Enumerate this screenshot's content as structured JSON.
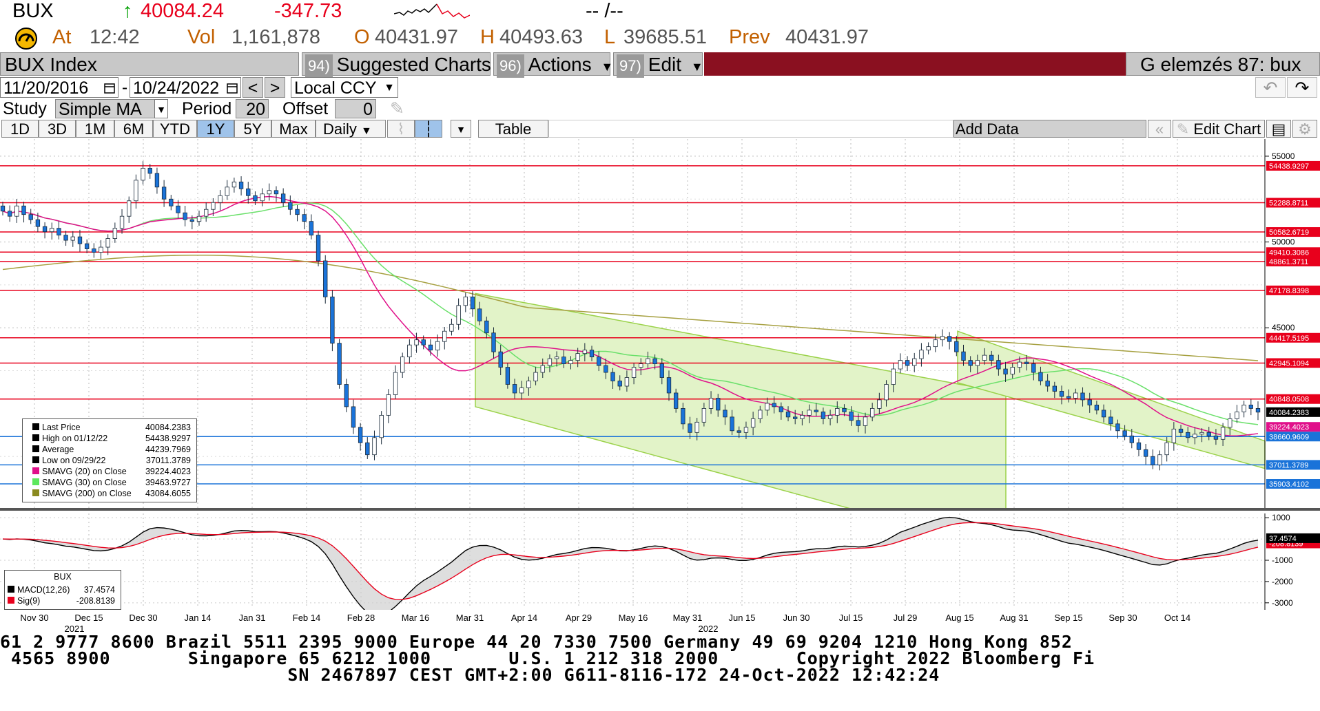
{
  "header": {
    "ticker": "BUX",
    "arrow": "↑",
    "last_price": "40084.24",
    "change": "-347.73",
    "time_placeholder": "-- /--",
    "at_label": "At",
    "at_time": "12:42",
    "vol_label": "Vol",
    "volume": "1,161,878",
    "open_label": "O",
    "open": "40431.97",
    "high_label": "H",
    "high": "40493.63",
    "low_label": "L",
    "low": "39685.51",
    "prev_label": "Prev",
    "prev": "40431.97"
  },
  "toolbar": {
    "security": "BUX Index",
    "suggested_num": "94)",
    "suggested_label": "Suggested Charts",
    "actions_num": "96)",
    "actions_label": "Actions",
    "edit_num": "97)",
    "edit_label": "Edit",
    "function_label": "G elemzés 87: bux"
  },
  "range": {
    "start_date": "11/20/2016",
    "separator": "-",
    "end_date": "10/24/2022",
    "prev_icon": "chevron-left-icon",
    "next_icon": "chevron-right-icon",
    "currency": "Local CCY",
    "undo_icon": "undo-icon",
    "redo_icon": "redo-icon"
  },
  "study": {
    "study_label": "Study",
    "study_value": "Simple MA",
    "period_label": "Period",
    "period_value": "20",
    "offset_label": "Offset",
    "offset_value": "0"
  },
  "periods": {
    "buttons": [
      "1D",
      "3D",
      "1M",
      "6M",
      "YTD",
      "1Y",
      "5Y",
      "Max"
    ],
    "selected": "1Y",
    "frequency": "Daily",
    "table_label": "Table",
    "add_data_placeholder": "Add Data",
    "edit_chart_label": "Edit Chart"
  },
  "legend": {
    "rows": [
      {
        "label": "Last Price",
        "value": "40084.2383",
        "color": "#000000"
      },
      {
        "label": "High on 01/12/22",
        "value": "54438.9297",
        "color": "#000000"
      },
      {
        "label": "Average",
        "value": "44239.7969",
        "color": "#000000"
      },
      {
        "label": "Low on 09/29/22",
        "value": "37011.3789",
        "color": "#000000"
      },
      {
        "label": "SMAVG (20)  on Close",
        "value": "39224.4023",
        "color": "#e0108a"
      },
      {
        "label": "SMAVG (30)  on Close",
        "value": "39463.9727",
        "color": "#5de85d"
      },
      {
        "label": "SMAVG (200)  on Close",
        "value": "43084.6055",
        "color": "#8a8a20"
      }
    ]
  },
  "macd_legend": {
    "title": "BUX",
    "rows": [
      {
        "label": "MACD(12,26)",
        "value": "37.4574",
        "color": "#000000"
      },
      {
        "label": "Sig(9)",
        "value": "-208.8139",
        "color": "#e8001c"
      }
    ]
  },
  "chart_data": {
    "type": "line",
    "title": "",
    "y_axis_ticks": [
      "55000",
      "50000",
      "45000"
    ],
    "ylim": [
      34500,
      56000
    ],
    "price_labels": [
      {
        "value": 54438.9297,
        "label": "54438.9297",
        "color": "#e8001c"
      },
      {
        "value": 52288.8711,
        "label": "52288.8711",
        "color": "#e8001c"
      },
      {
        "value": 50582.6719,
        "label": "50582.6719",
        "color": "#e8001c"
      },
      {
        "value": 49410.3086,
        "label": "49410.3086",
        "color": "#e8001c"
      },
      {
        "value": 48861.3711,
        "label": "48861.3711",
        "color": "#e8001c"
      },
      {
        "value": 47178.8398,
        "label": "47178.8398",
        "color": "#e8001c"
      },
      {
        "value": 44417.5195,
        "label": "44417.5195",
        "color": "#e8001c"
      },
      {
        "value": 42945.1094,
        "label": "42945.1094",
        "color": "#e8001c"
      },
      {
        "value": 40848.0508,
        "label": "40848.0508",
        "color": "#e8001c"
      },
      {
        "value": 40084.2383,
        "label": "40084.2383",
        "color": "#000000"
      },
      {
        "value": 39224.4023,
        "label": "39224.4023",
        "color": "#e0108a"
      },
      {
        "value": 38660.9609,
        "label": "38660.9609",
        "color": "#1a73d9"
      },
      {
        "value": 37011.3789,
        "label": "37011.3789",
        "color": "#1a73d9"
      },
      {
        "value": 35903.4102,
        "label": "35903.4102",
        "color": "#1a73d9"
      }
    ],
    "x_tick_labels": [
      "Nov 30",
      "Dec 15",
      "Dec 30",
      "Jan 14",
      "Jan 31",
      "Feb 14",
      "Feb 28",
      "Mar 16",
      "Mar 31",
      "Apr 14",
      "Apr 29",
      "May 16",
      "May 31",
      "Jun 15",
      "Jun 30",
      "Jul 15",
      "Jul 29",
      "Aug 15",
      "Aug 31",
      "Sep 15",
      "Sep 30",
      "Oct 14"
    ],
    "year_labels": [
      "2021",
      "2022"
    ],
    "close": [
      51800,
      51500,
      52100,
      51600,
      51300,
      50900,
      50600,
      50800,
      50400,
      50100,
      50300,
      49900,
      49600,
      49400,
      49700,
      50200,
      50800,
      51500,
      52400,
      53600,
      54300,
      54000,
      53200,
      52500,
      52100,
      51700,
      51300,
      51200,
      51500,
      51900,
      52300,
      52700,
      53200,
      53500,
      53100,
      52700,
      52400,
      52800,
      53000,
      52800,
      52300,
      51900,
      51600,
      51200,
      50400,
      48900,
      46800,
      44100,
      41700,
      40400,
      39200,
      38300,
      37600,
      38600,
      39900,
      41100,
      42400,
      43300,
      44000,
      44300,
      44000,
      43700,
      44200,
      44800,
      45200,
      46300,
      46800,
      46100,
      45400,
      44700,
      43600,
      42700,
      41700,
      41200,
      41500,
      41900,
      42400,
      42800,
      43200,
      43300,
      42900,
      43100,
      43500,
      43700,
      43300,
      42800,
      42400,
      41900,
      41600,
      42100,
      42700,
      42900,
      43200,
      42900,
      42100,
      41200,
      40300,
      39400,
      38900,
      39500,
      40300,
      40900,
      40200,
      39800,
      39000,
      38900,
      39200,
      39700,
      40200,
      40600,
      40400,
      40100,
      39800,
      39700,
      39900,
      40200,
      40100,
      39700,
      39900,
      40300,
      40100,
      39600,
      39300,
      39800,
      40300,
      40800,
      41700,
      42600,
      43100,
      42800,
      43200,
      43700,
      43900,
      44300,
      44500,
      44200,
      43600,
      43100,
      42800,
      43100,
      43400,
      43100,
      42600,
      42300,
      42700,
      43000,
      42900,
      42400,
      41900,
      41600,
      41300,
      41000,
      40900,
      41200,
      40800,
      40500,
      40200,
      39800,
      39400,
      39000,
      38700,
      38300,
      37900,
      37500,
      37011,
      37600,
      38300,
      39100,
      38900,
      38600,
      38800,
      38900,
      38700,
      38500,
      39200,
      39700,
      40100,
      40500,
      40300,
      40084
    ],
    "sma200_start": 48400,
    "sma200_end": 43084.6055
  },
  "macd_chart": {
    "y_axis_ticks": [
      "1000",
      "-1000",
      "-2000",
      "-3000"
    ],
    "ylim": [
      -3200,
      1200
    ],
    "macd_last": 37.4574,
    "sig_last": -208.8139
  },
  "ticker_lines": [
    "61 2 9777 8600 Brazil 5511 2395 9000 Europe 44 20 7330 7500 Germany 49 69 9204 1210 Hong Kong 852",
    " 4565 8900       Singapore 65 6212 1000       U.S. 1 212 318 2000       Copyright 2022 Bloomberg Fi",
    "                          SN 2467897 CEST GMT+2:00 G611-8116-172 24-Oct-2022 12:42:24"
  ],
  "colors": {
    "up_arrow": "#00a000",
    "change": "#e8001c",
    "label_orange": "#c26000",
    "candle_blue": "#1a73d9",
    "channel_fill": "#e2f3c8",
    "channel_line": "#9bd24a",
    "toolbar_maroon": "#8a1020"
  }
}
